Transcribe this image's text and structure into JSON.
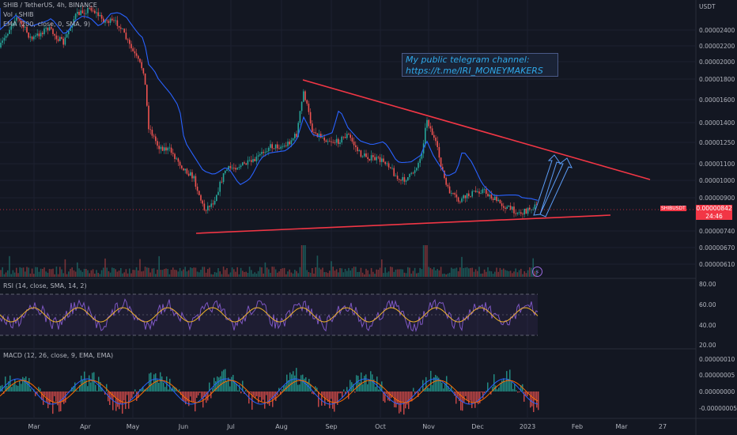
{
  "header": {
    "symbol_line": "SHIB / TetherUS, 4h, BINANCE",
    "volume_line": "Vol · SHIB",
    "ema_line": "EMA (200, close, 0, SMA, 9)",
    "rsi_line": "RSI (14, close, SMA, 14, 2)",
    "macd_line": "MACD (12, 26, close, 9, EMA, EMA)"
  },
  "axis": {
    "currency": "USDT",
    "price_ticks": [
      "0.00002400",
      "0.00002200",
      "0.00002000",
      "0.00001800",
      "0.00001600",
      "0.00001400",
      "0.00001250",
      "0.00001100",
      "0.00001000",
      "0.00000900",
      "0.00000740",
      "0.00000670",
      "0.00000610"
    ],
    "rsi_ticks": [
      "80.00",
      "60.00",
      "40.00",
      "20.00"
    ],
    "macd_ticks": [
      "0.00000010",
      "0.00000005",
      "0.00000000",
      "-0.00000005"
    ],
    "months": [
      "Mar",
      "Apr",
      "May",
      "Jun",
      "Jul",
      "Aug",
      "Sep",
      "Oct",
      "Nov",
      "Dec",
      "2023",
      "Feb",
      "Mar",
      "27"
    ]
  },
  "price_tag": {
    "symbol": "SHIBUSDT",
    "price": "0.00000842",
    "countdown": "24:46"
  },
  "annotation": {
    "line1": "My public telegram channel:",
    "line2": "https://t.me/IRI_MONEYMAKERS"
  },
  "colors": {
    "background": "#131722",
    "up": "#26a69a",
    "down": "#ef5350",
    "ema": "#2962ff",
    "trendline": "#f23645",
    "arrow": "#5b9cf6",
    "rsi": "#7e57c2",
    "rsi_ma": "#f0b429",
    "note_text": "#2fa8e8"
  },
  "icons": {
    "replay": "lightning-icon"
  }
}
